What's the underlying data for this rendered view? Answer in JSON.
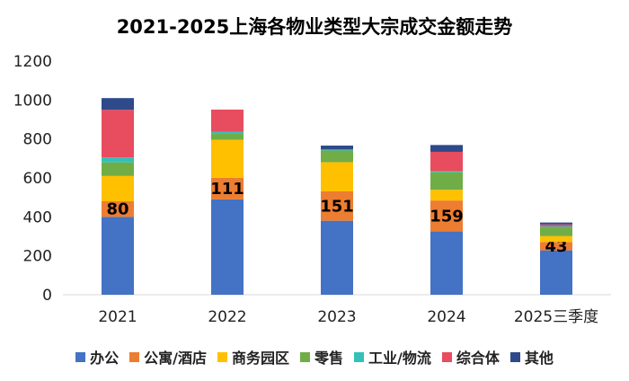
{
  "chart_data": {
    "type": "bar",
    "stacked": true,
    "title": "2021-2025上海各物业类型大宗成交金额走势",
    "categories": [
      "2021",
      "2022",
      "2023",
      "2024",
      "2025三季度"
    ],
    "ylim": [
      0,
      1200
    ],
    "yticks": [
      0,
      200,
      400,
      600,
      800,
      1000,
      1200
    ],
    "grid": false,
    "legend_position": "bottom",
    "series": [
      {
        "name": "办公",
        "color": "#4472C4",
        "values": [
          400,
          490,
          380,
          325,
          228
        ]
      },
      {
        "name": "公寓/酒店",
        "color": "#ED7D31",
        "values": [
          80,
          111,
          151,
          159,
          43
        ]
      },
      {
        "name": "商务园区",
        "color": "#FFC000",
        "values": [
          130,
          195,
          150,
          55,
          30
        ]
      },
      {
        "name": "零售",
        "color": "#70AD47",
        "values": [
          70,
          30,
          60,
          90,
          45
        ]
      },
      {
        "name": "工业/物流",
        "color": "#33C1B9",
        "values": [
          25,
          10,
          5,
          5,
          5
        ]
      },
      {
        "name": "综合体",
        "color": "#E84C5F",
        "values": [
          245,
          115,
          0,
          100,
          10
        ]
      },
      {
        "name": "其他",
        "color": "#2E4A8B",
        "values": [
          60,
          0,
          20,
          35,
          10
        ]
      }
    ],
    "data_labels": {
      "series": "公寓/酒店",
      "values": [
        "80",
        "111",
        "151",
        "159",
        "43"
      ]
    }
  }
}
